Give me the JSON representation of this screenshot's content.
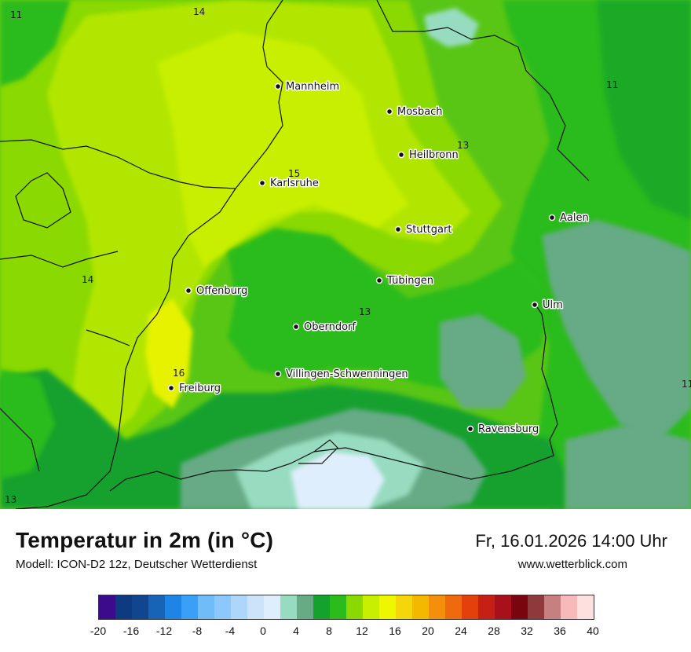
{
  "title": "Temperatur in 2m (in °C)",
  "model": "Modell: ICON-D2 12z, Deutscher Wetterdienst",
  "datetime": "Fr, 16.01.2026 14:00 Uhr",
  "website": "www.wetterblick.com",
  "cities": [
    {
      "name": "Mannheim"
    },
    {
      "name": "Mosbach"
    },
    {
      "name": "Heilbronn"
    },
    {
      "name": "Karlsruhe"
    },
    {
      "name": "Aalen"
    },
    {
      "name": "Stuttgart"
    },
    {
      "name": "Offenburg"
    },
    {
      "name": "Tübingen"
    },
    {
      "name": "Ulm"
    },
    {
      "name": "Oberndorf"
    },
    {
      "name": "Villingen-Schwenningen"
    },
    {
      "name": "Freiburg"
    },
    {
      "name": "Ravensburg"
    }
  ],
  "isotherm_labels": [
    "14",
    "11",
    "13",
    "15",
    "14",
    "13",
    "16",
    "11",
    "13"
  ],
  "color_scale": {
    "tick_labels": [
      "-20",
      "-16",
      "-12",
      "-8",
      "-4",
      "0",
      "4",
      "8",
      "12",
      "16",
      "20",
      "24",
      "28",
      "32",
      "36",
      "40"
    ],
    "colors": [
      "#3a0b8a",
      "#0e3a82",
      "#10468f",
      "#1763b6",
      "#1e84e6",
      "#3aa0f7",
      "#6fbcf9",
      "#8cc8fb",
      "#aed6fb",
      "#cde3fa",
      "#dfeefc",
      "#97dcc0",
      "#66aa86",
      "#14a12e",
      "#2bbb1b",
      "#8ad900",
      "#c8ef00",
      "#eef600",
      "#f5d60b",
      "#f5b800",
      "#f48f0c",
      "#ef6a0c",
      "#e4400c",
      "#c51f16",
      "#a8101b",
      "#7a0510",
      "#8e3a3d",
      "#c78080",
      "#f7b9b9",
      "#fde0e0"
    ]
  }
}
